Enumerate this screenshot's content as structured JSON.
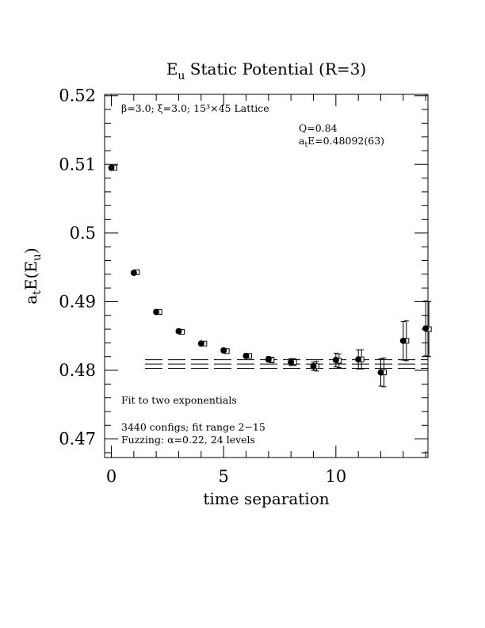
{
  "chart_data": {
    "type": "scatter",
    "title": "E_u Static Potential (R=3)",
    "xlabel": "time separation",
    "ylabel": "a_t E(E_u)",
    "xlim": [
      -0.3,
      14.1
    ],
    "ylim": [
      0.4673,
      0.5202
    ],
    "x_ticks": [
      0,
      5,
      10
    ],
    "y_ticks": [
      0.47,
      0.48,
      0.49,
      0.5,
      0.51,
      0.52
    ],
    "x_tick_labels": [
      "0",
      "5",
      "10"
    ],
    "y_tick_labels": [
      "0.47",
      "0.48",
      "0.49",
      "0.5",
      "0.51",
      "0.52"
    ],
    "annotations": {
      "lattice": "β=3.0; ξ=3.0; 15³×45 Lattice",
      "q_value": "Q=0.84",
      "energy": "a_tE=0.48092(63)",
      "fit_desc": "Fit to two exponentials",
      "configs": "3440 configs; fit range 2−15",
      "fuzzing": "Fuzzing: α=0.22, 24 levels"
    },
    "series": [
      {
        "marker": "filled-circle",
        "points": [
          {
            "x": 0,
            "y": 0.5095,
            "err": 0.0002
          },
          {
            "x": 1,
            "y": 0.4942,
            "err": 0.0002
          },
          {
            "x": 2,
            "y": 0.4885,
            "err": 0.0002
          },
          {
            "x": 3,
            "y": 0.4857,
            "err": 0.0003
          },
          {
            "x": 4,
            "y": 0.4839,
            "err": 0.0003
          },
          {
            "x": 5,
            "y": 0.4829,
            "err": 0.0003
          },
          {
            "x": 6,
            "y": 0.4821,
            "err": 0.0003
          },
          {
            "x": 7,
            "y": 0.4816,
            "err": 0.0004
          },
          {
            "x": 8,
            "y": 0.4812,
            "err": 0.0005
          },
          {
            "x": 9,
            "y": 0.4806,
            "err": 0.0006
          },
          {
            "x": 10,
            "y": 0.4815,
            "err": 0.001
          },
          {
            "x": 11,
            "y": 0.4816,
            "err": 0.0014
          },
          {
            "x": 12,
            "y": 0.4797,
            "err": 0.002
          },
          {
            "x": 13,
            "y": 0.4843,
            "err": 0.0028
          },
          {
            "x": 14,
            "y": 0.4861,
            "err": 0.004
          }
        ]
      },
      {
        "marker": "open-square",
        "points": [
          {
            "x": 0,
            "y": 0.5095,
            "err": 0.0002
          },
          {
            "x": 1,
            "y": 0.4943,
            "err": 0.0002
          },
          {
            "x": 2,
            "y": 0.4885,
            "err": 0.0002
          },
          {
            "x": 3,
            "y": 0.4856,
            "err": 0.0002
          },
          {
            "x": 4,
            "y": 0.4839,
            "err": 0.0003
          },
          {
            "x": 5,
            "y": 0.4828,
            "err": 0.0003
          },
          {
            "x": 6,
            "y": 0.4821,
            "err": 0.0003
          },
          {
            "x": 7,
            "y": 0.4815,
            "err": 0.0004
          },
          {
            "x": 8,
            "y": 0.4812,
            "err": 0.0005
          },
          {
            "x": 9,
            "y": 0.4806,
            "err": 0.0007
          },
          {
            "x": 10,
            "y": 0.4814,
            "err": 0.001
          },
          {
            "x": 11,
            "y": 0.4816,
            "err": 0.0014
          },
          {
            "x": 12,
            "y": 0.4797,
            "err": 0.0021
          },
          {
            "x": 13,
            "y": 0.4843,
            "err": 0.0029
          },
          {
            "x": 14,
            "y": 0.486,
            "err": 0.004
          }
        ]
      }
    ],
    "fit": {
      "x_range": [
        1.5,
        14.1
      ],
      "center": 0.48092,
      "error": 0.00063,
      "style": "dashed"
    }
  }
}
